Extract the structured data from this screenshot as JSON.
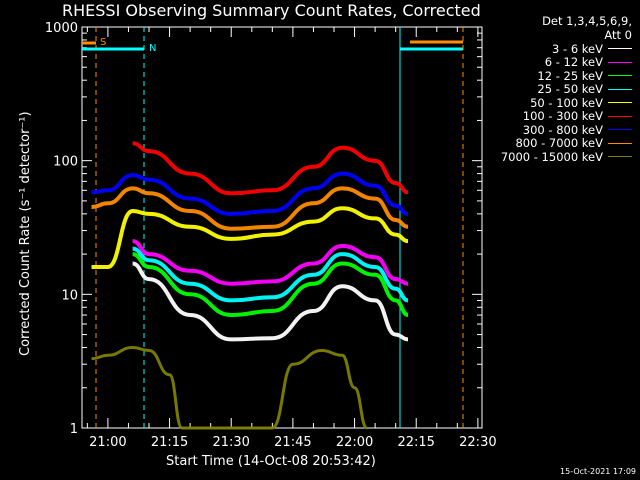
{
  "chart_data": {
    "type": "line",
    "title": "RHESSI Observing Summary Count Rates, Corrected",
    "xlabel": "Start Time (14-Oct-08 20:53:42)",
    "ylabel": "Corrected Count Rate (s⁻¹ detector⁻¹)",
    "yscale": "log",
    "ylim": [
      1,
      1000
    ],
    "yticks": [
      "1",
      "10",
      "100",
      "1000"
    ],
    "xlim": [
      "20:53:42",
      "22:31:00"
    ],
    "xticks": [
      "21:00",
      "21:15",
      "21:30",
      "21:45",
      "22:00",
      "22:15",
      "22:30"
    ],
    "legend_header": [
      "Det 1,3,4,5,6,9,",
      "Att 0"
    ],
    "series": [
      {
        "name": "3 - 6 keV",
        "color": "#ffffff",
        "x": [
          "21:06",
          "21:10",
          "21:20",
          "21:30",
          "21:40",
          "21:50",
          "21:57",
          "22:05",
          "22:10",
          "22:13"
        ],
        "values": [
          17,
          13,
          7,
          4.6,
          4.7,
          7.5,
          11.5,
          9,
          5,
          4.6
        ]
      },
      {
        "name": "6 - 12 keV",
        "color": "#ff00ff",
        "x": [
          "21:06",
          "21:10",
          "21:20",
          "21:30",
          "21:40",
          "21:50",
          "21:57",
          "22:05",
          "22:10",
          "22:13"
        ],
        "values": [
          25,
          20,
          15,
          12,
          12.5,
          17,
          23,
          19,
          13,
          12
        ]
      },
      {
        "name": "12 - 25 keV",
        "color": "#00ff00",
        "x": [
          "21:06",
          "21:10",
          "21:20",
          "21:30",
          "21:40",
          "21:50",
          "21:57",
          "22:05",
          "22:10",
          "22:13"
        ],
        "values": [
          20,
          16,
          10,
          7,
          7.5,
          12,
          17,
          14,
          9,
          7
        ]
      },
      {
        "name": "25 - 50 keV",
        "color": "#00ffff",
        "x": [
          "21:06",
          "21:10",
          "21:20",
          "21:30",
          "21:40",
          "21:50",
          "21:57",
          "22:05",
          "22:10",
          "22:13"
        ],
        "values": [
          22,
          18,
          12,
          9,
          9.5,
          14,
          20,
          16,
          11,
          9
        ]
      },
      {
        "name": "50 - 100 keV",
        "color": "#ffff00",
        "x": [
          "20:56",
          "21:00",
          "21:06",
          "21:10",
          "21:20",
          "21:30",
          "21:40",
          "21:50",
          "21:57",
          "22:05",
          "22:10",
          "22:13"
        ],
        "values": [
          16,
          16,
          42,
          40,
          32,
          26,
          28,
          35,
          44,
          37,
          28,
          25
        ]
      },
      {
        "name": "100 - 300 keV",
        "color": "#ff0000",
        "x": [
          "21:06",
          "21:10",
          "21:20",
          "21:30",
          "21:40",
          "21:50",
          "21:57",
          "22:05",
          "22:10",
          "22:13"
        ],
        "values": [
          135,
          118,
          80,
          57,
          60,
          90,
          125,
          100,
          68,
          58
        ]
      },
      {
        "name": "300 - 800 keV",
        "color": "#0000ff",
        "x": [
          "20:56",
          "21:00",
          "21:06",
          "21:10",
          "21:20",
          "21:30",
          "21:40",
          "21:50",
          "21:57",
          "22:05",
          "22:10",
          "22:13"
        ],
        "values": [
          58,
          60,
          78,
          72,
          52,
          40,
          42,
          62,
          80,
          65,
          46,
          40
        ]
      },
      {
        "name": "800 - 7000 keV",
        "color": "#ff8c00",
        "x": [
          "20:56",
          "21:00",
          "21:06",
          "21:10",
          "21:20",
          "21:30",
          "21:40",
          "21:50",
          "21:57",
          "22:05",
          "22:10",
          "22:13"
        ],
        "values": [
          45,
          48,
          62,
          57,
          42,
          31,
          32,
          48,
          62,
          52,
          36,
          32
        ]
      },
      {
        "name": "7000 - 15000 keV",
        "color": "#808000",
        "x": [
          "20:56",
          "21:00",
          "21:06",
          "21:10",
          "21:15",
          "21:18",
          "21:40",
          "21:45",
          "21:52",
          "21:57",
          "22:00",
          "22:03"
        ],
        "values": [
          3.3,
          3.5,
          4,
          3.8,
          2.5,
          1,
          1,
          3,
          3.8,
          3.5,
          2,
          1
        ]
      }
    ],
    "event_markers": [
      {
        "label": "S",
        "color": "#ff8c00"
      },
      {
        "label": "N",
        "color": "#00ffff"
      }
    ]
  },
  "timestamp": "15-Oct-2021 17:09"
}
